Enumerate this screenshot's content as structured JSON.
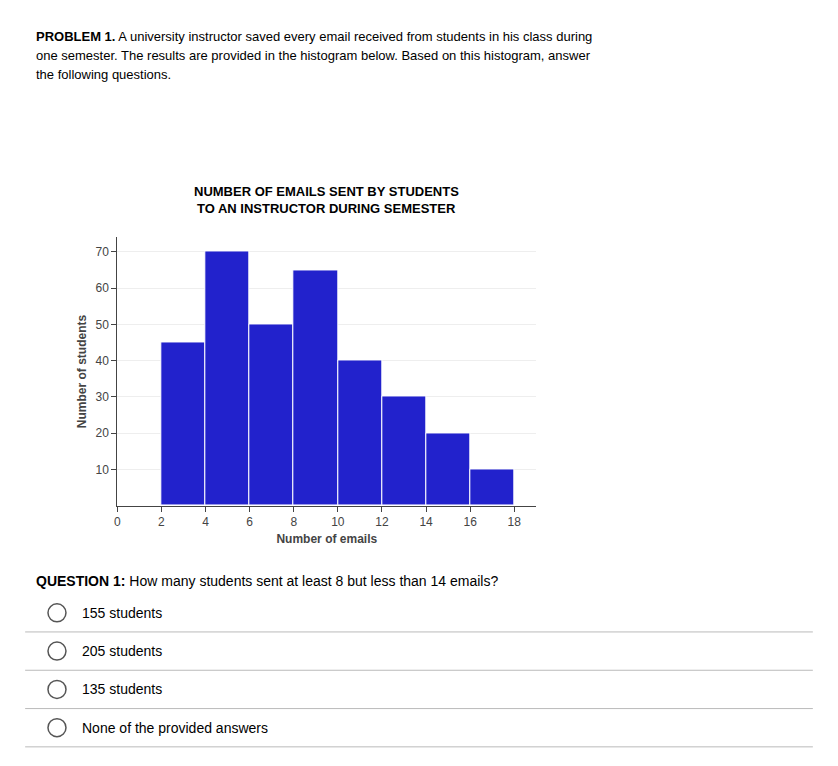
{
  "chart_data": {
    "type": "histogram",
    "title": "NUMBER OF EMAILS SENT BY STUDENTS",
    "subtitle": "TO AN INSTRUCTOR DURING SEMESTER",
    "x_label": "Number of emails",
    "y_label": "Number of students",
    "bins": [
      2,
      4,
      6,
      8,
      10,
      12,
      14,
      16,
      18
    ],
    "values": [
      45,
      70,
      50,
      65,
      40,
      30,
      20,
      10
    ],
    "color": "#2222cc",
    "xlim": [
      0,
      19
    ],
    "xticks": [
      0,
      2,
      4,
      6,
      8,
      10,
      12,
      14,
      16,
      18
    ],
    "ylim": [
      0,
      74
    ],
    "yticks": [
      10,
      20,
      30,
      40,
      50,
      60,
      70
    ],
    "grid": true,
    "annotations": [
      "PROBLEM 1.",
      "A university instructor saved every email received from students in his class during",
      "one semester. The results are provided in the histogram below. Based on this histogram, answer",
      "the following questions.",
      "QUESTION 1:",
      "How many students sent at least 8 but less than 14 emails?",
      "155 students",
      "205 students",
      "135 students",
      "None of the provided answers"
    ]
  }
}
